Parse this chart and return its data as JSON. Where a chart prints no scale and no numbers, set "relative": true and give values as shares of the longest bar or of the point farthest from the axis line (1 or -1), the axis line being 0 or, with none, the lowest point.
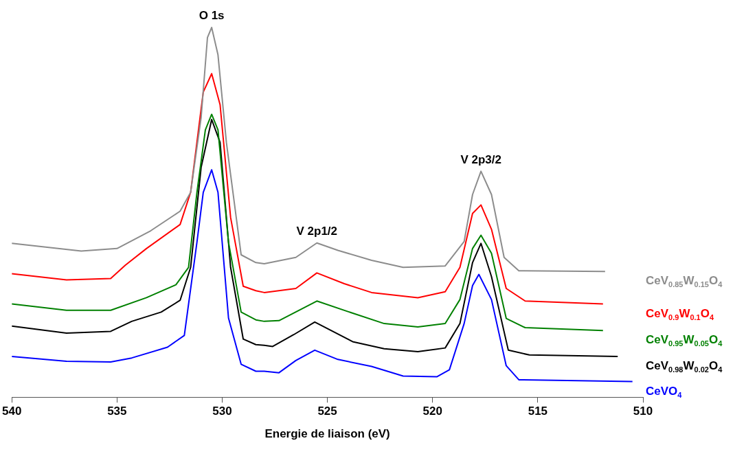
{
  "chart_data": {
    "type": "line",
    "relative": true,
    "xlabel": "Energie de liaison (eV)",
    "xlim": [
      540,
      510
    ],
    "xticks": [
      540,
      535,
      530,
      525,
      520,
      515,
      510
    ],
    "annotations": [
      {
        "text": "O 1s",
        "x": 530.5,
        "y": 1
      },
      {
        "text": "V 2p1/2",
        "x": 525.5,
        "y": 0.417
      },
      {
        "text": "V 2p3/2",
        "x": 517.7,
        "y": 0.611
      }
    ],
    "series": [
      {
        "name": "CeV$_{0.85}$W$_{0.15}$O$_{4}$",
        "color": "#8c8c8c",
        "x": [
          540,
          536.7,
          535,
          533.4,
          532,
          531.5,
          531,
          530.7,
          530.5,
          530.2,
          529.8,
          529.1,
          528.4,
          528,
          526.5,
          525.5,
          524.5,
          522.9,
          521.4,
          519.4,
          518.5,
          518.1,
          517.7,
          517.2,
          516.6,
          515.9,
          511.8
        ],
        "values": [
          0.416,
          0.395,
          0.402,
          0.45,
          0.503,
          0.554,
          0.757,
          0.973,
          1,
          0.926,
          0.689,
          0.385,
          0.364,
          0.361,
          0.378,
          0.417,
          0.397,
          0.37,
          0.351,
          0.355,
          0.421,
          0.548,
          0.611,
          0.548,
          0.378,
          0.342,
          0.34
        ]
      },
      {
        "name": "CeV$_{0.9}$W$_{0.1}$O$_{4}$",
        "color": "#ff0000",
        "x": [
          540,
          537.4,
          535.3,
          534.6,
          533.6,
          532,
          531.5,
          530.9,
          530.5,
          530.1,
          529.6,
          529,
          528.4,
          528,
          526.5,
          525.5,
          524.2,
          522.9,
          520.7,
          519.4,
          518.7,
          518.1,
          517.7,
          517.2,
          516.5,
          515.6,
          511.9
        ],
        "values": [
          0.334,
          0.317,
          0.321,
          0.357,
          0.402,
          0.467,
          0.554,
          0.825,
          0.875,
          0.791,
          0.486,
          0.3,
          0.288,
          0.283,
          0.294,
          0.336,
          0.307,
          0.283,
          0.269,
          0.285,
          0.351,
          0.497,
          0.52,
          0.454,
          0.294,
          0.26,
          0.252
        ]
      },
      {
        "name": "CeV$_{0.95}$W$_{0.05}$O$_{4}$",
        "color": "#008000",
        "x": [
          540,
          537.4,
          535.3,
          533.6,
          532.2,
          531.6,
          531.2,
          530.8,
          530.5,
          530.2,
          529.7,
          529.1,
          528.4,
          528,
          527.3,
          525.5,
          524,
          522.3,
          520.7,
          519.4,
          518.7,
          518.1,
          517.7,
          517.2,
          516.5,
          515.6,
          511.9
        ],
        "values": [
          0.252,
          0.235,
          0.235,
          0.269,
          0.304,
          0.351,
          0.554,
          0.723,
          0.765,
          0.723,
          0.419,
          0.23,
          0.209,
          0.205,
          0.207,
          0.26,
          0.231,
          0.199,
          0.19,
          0.199,
          0.264,
          0.402,
          0.438,
          0.389,
          0.213,
          0.188,
          0.18
        ]
      },
      {
        "name": "CeV$_{0.98}$W$_{0.02}$O$_{4}$",
        "color": "#000000",
        "x": [
          540,
          537.4,
          535.3,
          534.3,
          532.9,
          532,
          531.5,
          531,
          530.5,
          530.1,
          529.6,
          529,
          528.4,
          528,
          527.6,
          526.6,
          525.6,
          523.8,
          522.3,
          520.7,
          519.4,
          518.7,
          518.1,
          517.7,
          517.2,
          516.4,
          515.4,
          511.2
        ],
        "values": [
          0.192,
          0.173,
          0.178,
          0.205,
          0.23,
          0.262,
          0.351,
          0.622,
          0.751,
          0.689,
          0.351,
          0.157,
          0.142,
          0.14,
          0.137,
          0.169,
          0.203,
          0.15,
          0.131,
          0.123,
          0.133,
          0.199,
          0.364,
          0.416,
          0.326,
          0.127,
          0.114,
          0.11
        ]
      },
      {
        "name": "CeVO$_{4}$",
        "color": "#0000ff",
        "x": [
          540,
          537.4,
          535.3,
          534.3,
          532.6,
          531.8,
          531.2,
          530.9,
          530.5,
          530.2,
          529.7,
          529.1,
          528.4,
          528,
          527.3,
          526.5,
          525.6,
          524.5,
          522.9,
          521.4,
          519.8,
          519.2,
          518.5,
          518.1,
          517.8,
          517.2,
          516.5,
          515.9,
          510.5
        ],
        "values": [
          0.11,
          0.097,
          0.095,
          0.106,
          0.135,
          0.167,
          0.419,
          0.554,
          0.615,
          0.554,
          0.214,
          0.089,
          0.07,
          0.07,
          0.066,
          0.099,
          0.127,
          0.102,
          0.083,
          0.057,
          0.055,
          0.074,
          0.199,
          0.302,
          0.332,
          0.264,
          0.085,
          0.047,
          0.042
        ]
      }
    ]
  }
}
